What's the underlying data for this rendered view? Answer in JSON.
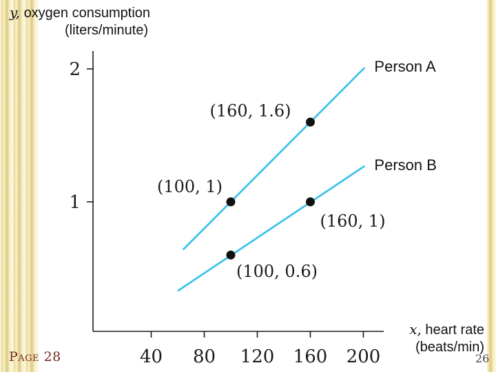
{
  "footer": {
    "page_label": "Page 28",
    "slide_number": "26"
  },
  "colors": {
    "footer_text": "#78281c",
    "slide_number_text": "#3f3f3f",
    "axis": "#1a1a1a"
  },
  "chart_data": {
    "type": "line",
    "title": "",
    "ylabel": {
      "var": "y,",
      "text": "oxygen consumption",
      "unit": "(liters/minute)"
    },
    "xlabel": {
      "var": "x,",
      "text": "heart rate",
      "unit": "(beats/min)"
    },
    "xticks": [
      40,
      80,
      120,
      160,
      200
    ],
    "yticks": [
      1,
      2
    ],
    "xlim": [
      0,
      210
    ],
    "ylim": [
      0,
      2.1
    ],
    "grid": false,
    "legend_position": "line-end-labels",
    "line_color": "#3fc2ea",
    "point_color": "#111111",
    "series": [
      {
        "name": "Person A",
        "points": [
          [
            100,
            1
          ],
          [
            160,
            1.6
          ]
        ],
        "line_start": [
          64,
          0.64
        ],
        "line_end": [
          201,
          2.01
        ]
      },
      {
        "name": "Person B",
        "points": [
          [
            100,
            0.6
          ],
          [
            160,
            1
          ]
        ],
        "line_start": [
          60,
          0.33
        ],
        "line_end": [
          201,
          1.27
        ]
      }
    ],
    "annotations": [
      {
        "text": "(160, 1.6)",
        "point": [
          160,
          1.6
        ]
      },
      {
        "text": "(100, 1)",
        "point": [
          100,
          1
        ]
      },
      {
        "text": "(160, 1)",
        "point": [
          160,
          1
        ]
      },
      {
        "text": "(100, 0.6)",
        "point": [
          100,
          0.6
        ]
      }
    ]
  }
}
